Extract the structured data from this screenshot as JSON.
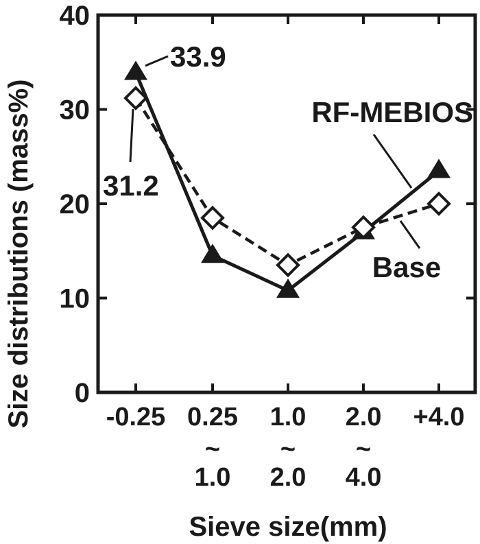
{
  "chart_data": {
    "type": "line",
    "title": "",
    "xlabel": "Sieve size(mm)",
    "ylabel": "Size distributions (mass%)",
    "ylim": [
      0,
      40
    ],
    "yticks": [
      0,
      10,
      20,
      30,
      40
    ],
    "grid": false,
    "categories": [
      {
        "lines": [
          "-0.25"
        ]
      },
      {
        "lines": [
          "0.25",
          "~",
          "1.0"
        ]
      },
      {
        "lines": [
          "1.0",
          "~",
          "2.0"
        ]
      },
      {
        "lines": [
          "2.0",
          "~",
          "4.0"
        ]
      },
      {
        "lines": [
          "+4.0"
        ]
      }
    ],
    "series": [
      {
        "name": "RF-MEBIOS",
        "values": [
          33.9,
          14.5,
          10.8,
          17.0,
          23.5
        ],
        "marker": "filled-triangle",
        "line": "solid"
      },
      {
        "name": "Base",
        "values": [
          31.2,
          18.5,
          13.5,
          17.5,
          20.0
        ],
        "marker": "open-diamond",
        "line": "dashed"
      }
    ],
    "annotations": [
      {
        "text": "33.9",
        "series": 0,
        "point": 0
      },
      {
        "text": "31.2",
        "series": 1,
        "point": 0
      }
    ],
    "colors": {
      "ink": "#1a1a1a",
      "background": "#ffffff"
    }
  }
}
